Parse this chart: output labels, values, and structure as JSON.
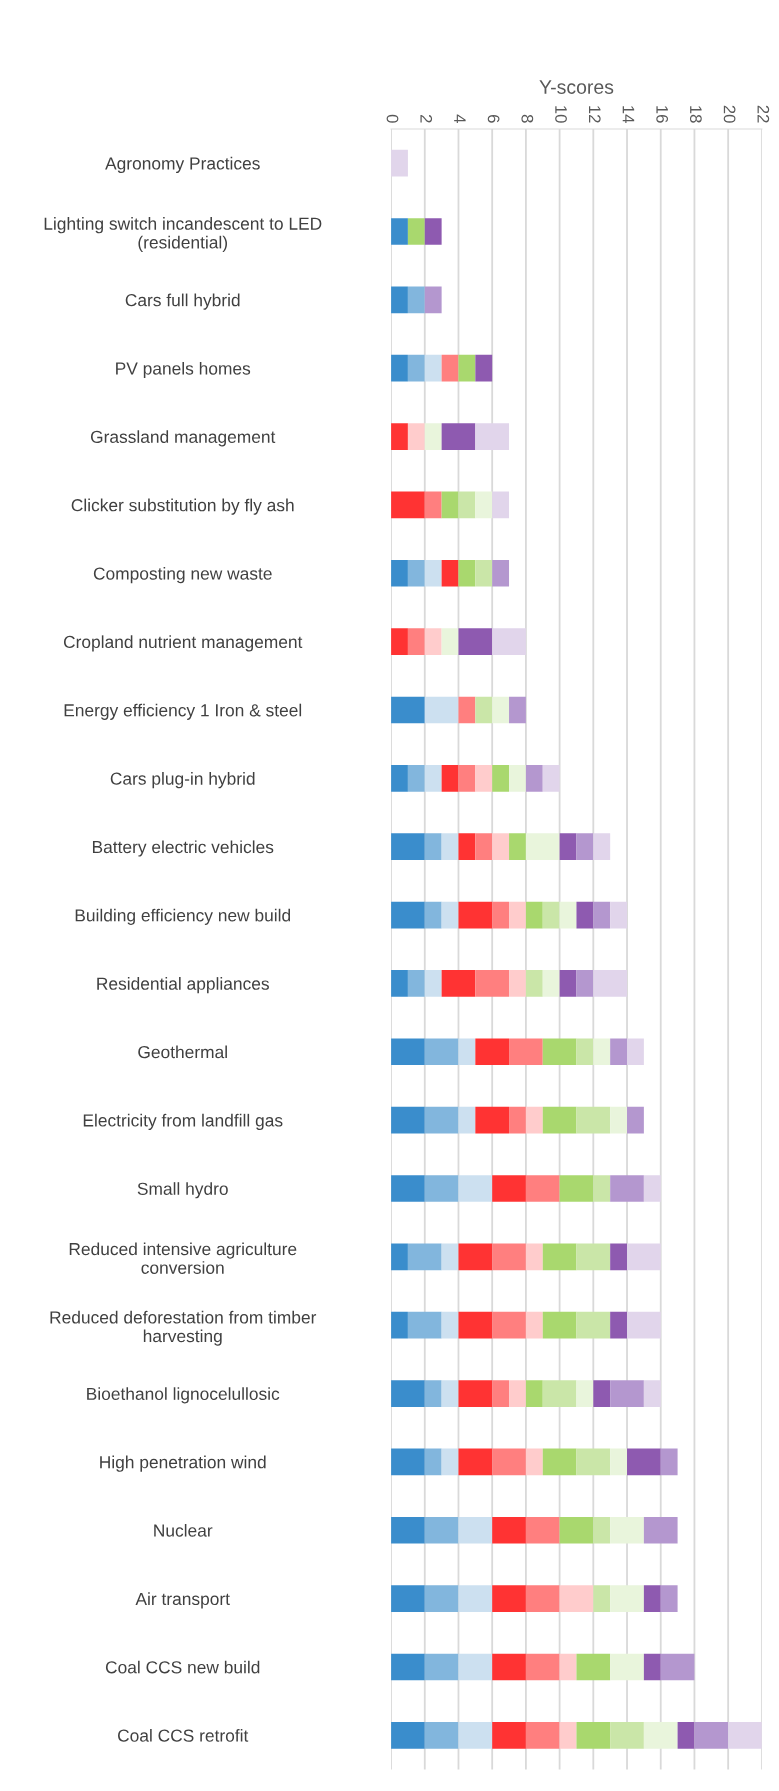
{
  "chart_data": {
    "type": "bar",
    "orientation": "horizontal",
    "stacked": true,
    "xlabel": "Y-scores",
    "categories": [
      "Agronomy Practices",
      "Lighting switch incandescent to LED\n(residential)",
      "Cars full hybrid",
      "PV panels homes",
      "Grassland management",
      "Clicker substitution by fly ash",
      "Composting new waste",
      "Cropland nutrient management",
      "Energy efficiency 1 Iron & steel",
      "Cars plug-in hybrid",
      "Battery electric vehicles",
      "Building efficiency new build",
      "Residential appliances",
      "Geothermal",
      "Electricity from landfill gas",
      "Small hydro",
      "Reduced intensive agriculture\nconversion",
      "Reduced deforestation from timber\nharvesting",
      "Bioethanol lignocelullosic",
      "High penetration wind",
      "Nuclear",
      "Air transport",
      "Coal CCS new build",
      "Coal CCS retrofit"
    ],
    "series": [
      {
        "color": "#3a8dcc",
        "values": [
          0,
          1,
          1,
          1,
          0,
          0,
          1,
          0,
          2,
          1,
          2,
          2,
          1,
          2,
          2,
          2,
          1,
          1,
          2,
          2,
          2,
          2,
          2,
          2
        ]
      },
      {
        "color": "#82b6dd",
        "values": [
          0,
          0,
          1,
          1,
          0,
          0,
          1,
          0,
          0,
          1,
          1,
          1,
          1,
          2,
          2,
          2,
          2,
          2,
          1,
          1,
          2,
          2,
          2,
          2
        ]
      },
      {
        "color": "#cce0f0",
        "values": [
          0,
          0,
          0,
          1,
          0,
          0,
          1,
          0,
          2,
          1,
          1,
          1,
          1,
          1,
          1,
          2,
          1,
          1,
          1,
          1,
          2,
          2,
          2,
          2
        ]
      },
      {
        "color": "#ff3333",
        "values": [
          0,
          0,
          0,
          0,
          1,
          2,
          1,
          1,
          0,
          1,
          1,
          2,
          2,
          2,
          2,
          2,
          2,
          2,
          2,
          2,
          2,
          2,
          2,
          2
        ]
      },
      {
        "color": "#ff7f7f",
        "values": [
          0,
          0,
          0,
          1,
          0,
          1,
          0,
          1,
          1,
          1,
          1,
          1,
          2,
          2,
          1,
          2,
          2,
          2,
          1,
          2,
          2,
          2,
          2,
          2
        ]
      },
      {
        "color": "#ffcccc",
        "values": [
          0,
          0,
          0,
          0,
          1,
          0,
          0,
          1,
          0,
          1,
          1,
          1,
          1,
          0,
          1,
          0,
          1,
          1,
          1,
          1,
          0,
          2,
          1,
          1
        ]
      },
      {
        "color": "#a9d86e",
        "values": [
          0,
          1,
          0,
          1,
          0,
          1,
          1,
          0,
          0,
          1,
          1,
          1,
          0,
          2,
          2,
          2,
          2,
          2,
          1,
          2,
          2,
          0,
          2,
          2
        ]
      },
      {
        "color": "#cae6a8",
        "values": [
          0,
          0,
          0,
          0,
          0,
          1,
          1,
          0,
          1,
          0,
          0,
          1,
          1,
          1,
          2,
          1,
          2,
          2,
          2,
          2,
          1,
          1,
          0,
          2
        ]
      },
      {
        "color": "#e9f5dc",
        "values": [
          0,
          0,
          0,
          0,
          1,
          1,
          0,
          1,
          1,
          1,
          2,
          1,
          1,
          1,
          1,
          0,
          0,
          0,
          1,
          1,
          2,
          2,
          2,
          2
        ]
      },
      {
        "color": "#8e5ab0",
        "values": [
          0,
          1,
          0,
          1,
          2,
          0,
          0,
          2,
          0,
          0,
          1,
          1,
          1,
          0,
          0,
          0,
          1,
          1,
          1,
          2,
          0,
          1,
          1,
          1
        ]
      },
      {
        "color": "#b497cf",
        "values": [
          0,
          0,
          1,
          0,
          0,
          0,
          1,
          0,
          1,
          1,
          1,
          1,
          1,
          1,
          1,
          2,
          0,
          0,
          2,
          1,
          2,
          1,
          2,
          2
        ]
      },
      {
        "color": "#e1d5eb",
        "values": [
          1,
          0,
          0,
          0,
          2,
          1,
          0,
          2,
          0,
          1,
          1,
          1,
          2,
          1,
          0,
          1,
          2,
          2,
          1,
          0,
          0,
          0,
          0,
          2
        ]
      }
    ],
    "xlim": [
      0,
      22
    ],
    "xticks": [
      0,
      2,
      4,
      6,
      8,
      10,
      12,
      14,
      16,
      18,
      20,
      22
    ],
    "grid": "x"
  }
}
